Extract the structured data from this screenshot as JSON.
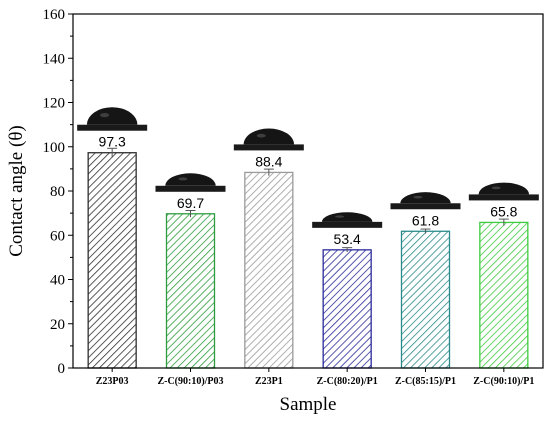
{
  "chart_data": {
    "type": "bar",
    "xlabel": "Sample",
    "ylabel": "Contact angle (θ)",
    "ylim": [
      0,
      160
    ],
    "yticks": [
      0,
      20,
      40,
      60,
      80,
      100,
      120,
      140,
      160
    ],
    "grid": false,
    "categories": [
      "Z23P03",
      "Z-C(90:10)/P03",
      "Z23P1",
      "Z-C(80:20)/P1",
      "Z-C(85:15)/P1",
      "Z-C(90:10)/P1"
    ],
    "values": [
      97.3,
      69.7,
      88.4,
      53.4,
      61.8,
      65.8
    ],
    "value_labels": [
      "97.3",
      "69.7",
      "88.4",
      "53.4",
      "61.8",
      "65.8"
    ],
    "errors": [
      2.0,
      1.5,
      1.5,
      1.0,
      1.0,
      1.5
    ],
    "colors": [
      "#303030",
      "#2e9c3e",
      "#9a9a9a",
      "#2b2b9c",
      "#2a8a8a",
      "#3ecc3e"
    ],
    "hatch": "diagonal",
    "annotations": "droplet photograph above each bar"
  }
}
